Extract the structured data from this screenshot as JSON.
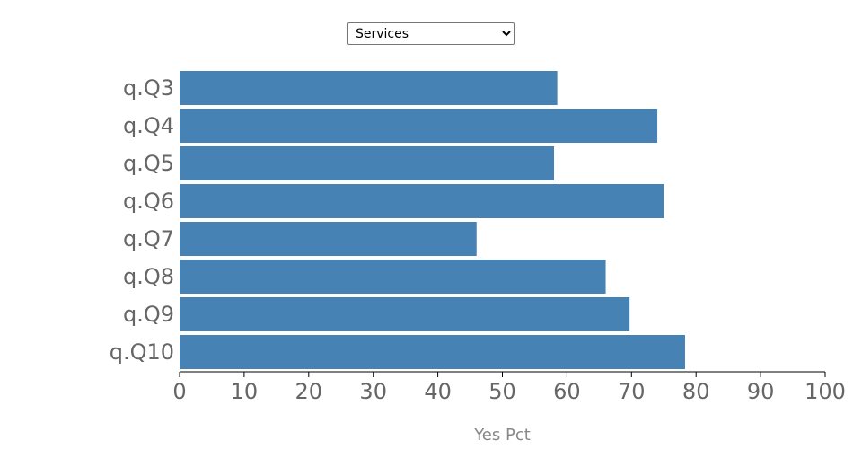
{
  "controls": {
    "selected": "Services",
    "options": [
      "Services"
    ]
  },
  "colors": {
    "bar": "#4682b4",
    "category_text": "#666666",
    "tick_text": "#666666",
    "axis_title": "#888888",
    "axis_line": "#000000"
  },
  "chart_data": {
    "type": "bar",
    "orientation": "horizontal",
    "categories": [
      "q.Q3",
      "q.Q4",
      "q.Q5",
      "q.Q6",
      "q.Q7",
      "q.Q8",
      "q.Q9",
      "q.Q10"
    ],
    "values": [
      58.5,
      74,
      58,
      75,
      46,
      66,
      69.7,
      78.3
    ],
    "xlabel": "Yes Pct",
    "ylabel": "",
    "xlim": [
      0,
      100
    ],
    "xticks": [
      0,
      10,
      20,
      30,
      40,
      50,
      60,
      70,
      80,
      90,
      100
    ],
    "xtick_labels": [
      "0",
      "10",
      "20",
      "30",
      "40",
      "50",
      "60",
      "70",
      "80",
      "90",
      "100"
    ],
    "grid": false,
    "legend": "none"
  }
}
